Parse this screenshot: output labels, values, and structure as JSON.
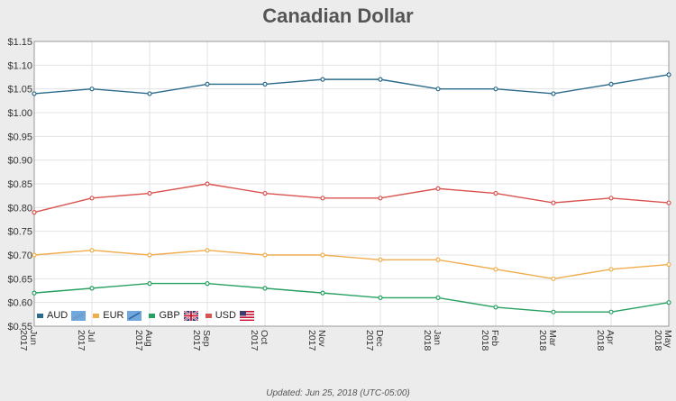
{
  "chart_data": {
    "type": "line",
    "title": "Canadian Dollar",
    "footer": "Updated: Jun 25, 2018 (UTC-05:00)",
    "categories": [
      "Jun 2017",
      "Jul 2017",
      "Aug 2017",
      "Sep 2017",
      "Oct 2017",
      "Nov 2017",
      "Dec 2017",
      "Jan 2018",
      "Feb 2018",
      "Mar 2018",
      "Apr 2018",
      "May 2018"
    ],
    "ylim": [
      0.55,
      1.15
    ],
    "yticks": [
      1.15,
      1.1,
      1.05,
      1.0,
      0.95,
      0.9,
      0.85,
      0.8,
      0.75,
      0.7,
      0.65,
      0.6,
      0.55
    ],
    "ytick_labels": [
      "$1.15",
      "$1.10",
      "$1.05",
      "$1.00",
      "$0.95",
      "$0.90",
      "$0.85",
      "$0.80",
      "$0.75",
      "$0.70",
      "$0.65",
      "$0.60",
      "$0.55"
    ],
    "grid": true,
    "legend_position": "bottom-left",
    "series": [
      {
        "name": "AUD",
        "color": "#2b6a8a",
        "icon": "australia-flag-icon",
        "values": [
          1.04,
          1.05,
          1.04,
          1.06,
          1.06,
          1.07,
          1.07,
          1.05,
          1.05,
          1.04,
          1.06,
          1.08
        ]
      },
      {
        "name": "USD",
        "color": "#d9534f",
        "icon": "usa-flag-icon",
        "values": [
          0.79,
          0.82,
          0.83,
          0.85,
          0.83,
          0.82,
          0.82,
          0.84,
          0.83,
          0.81,
          0.82,
          0.81
        ]
      },
      {
        "name": "EUR",
        "color": "#f0ad4e",
        "icon": "eu-flag-icon",
        "values": [
          0.7,
          0.71,
          0.7,
          0.71,
          0.7,
          0.7,
          0.69,
          0.69,
          0.67,
          0.65,
          0.67,
          0.68
        ]
      },
      {
        "name": "GBP",
        "color": "#28a061",
        "icon": "uk-flag-icon",
        "values": [
          0.62,
          0.63,
          0.64,
          0.64,
          0.63,
          0.62,
          0.61,
          0.61,
          0.59,
          0.58,
          0.58,
          0.6
        ]
      }
    ],
    "legend_order": [
      "AUD",
      "EUR",
      "GBP",
      "USD"
    ]
  }
}
